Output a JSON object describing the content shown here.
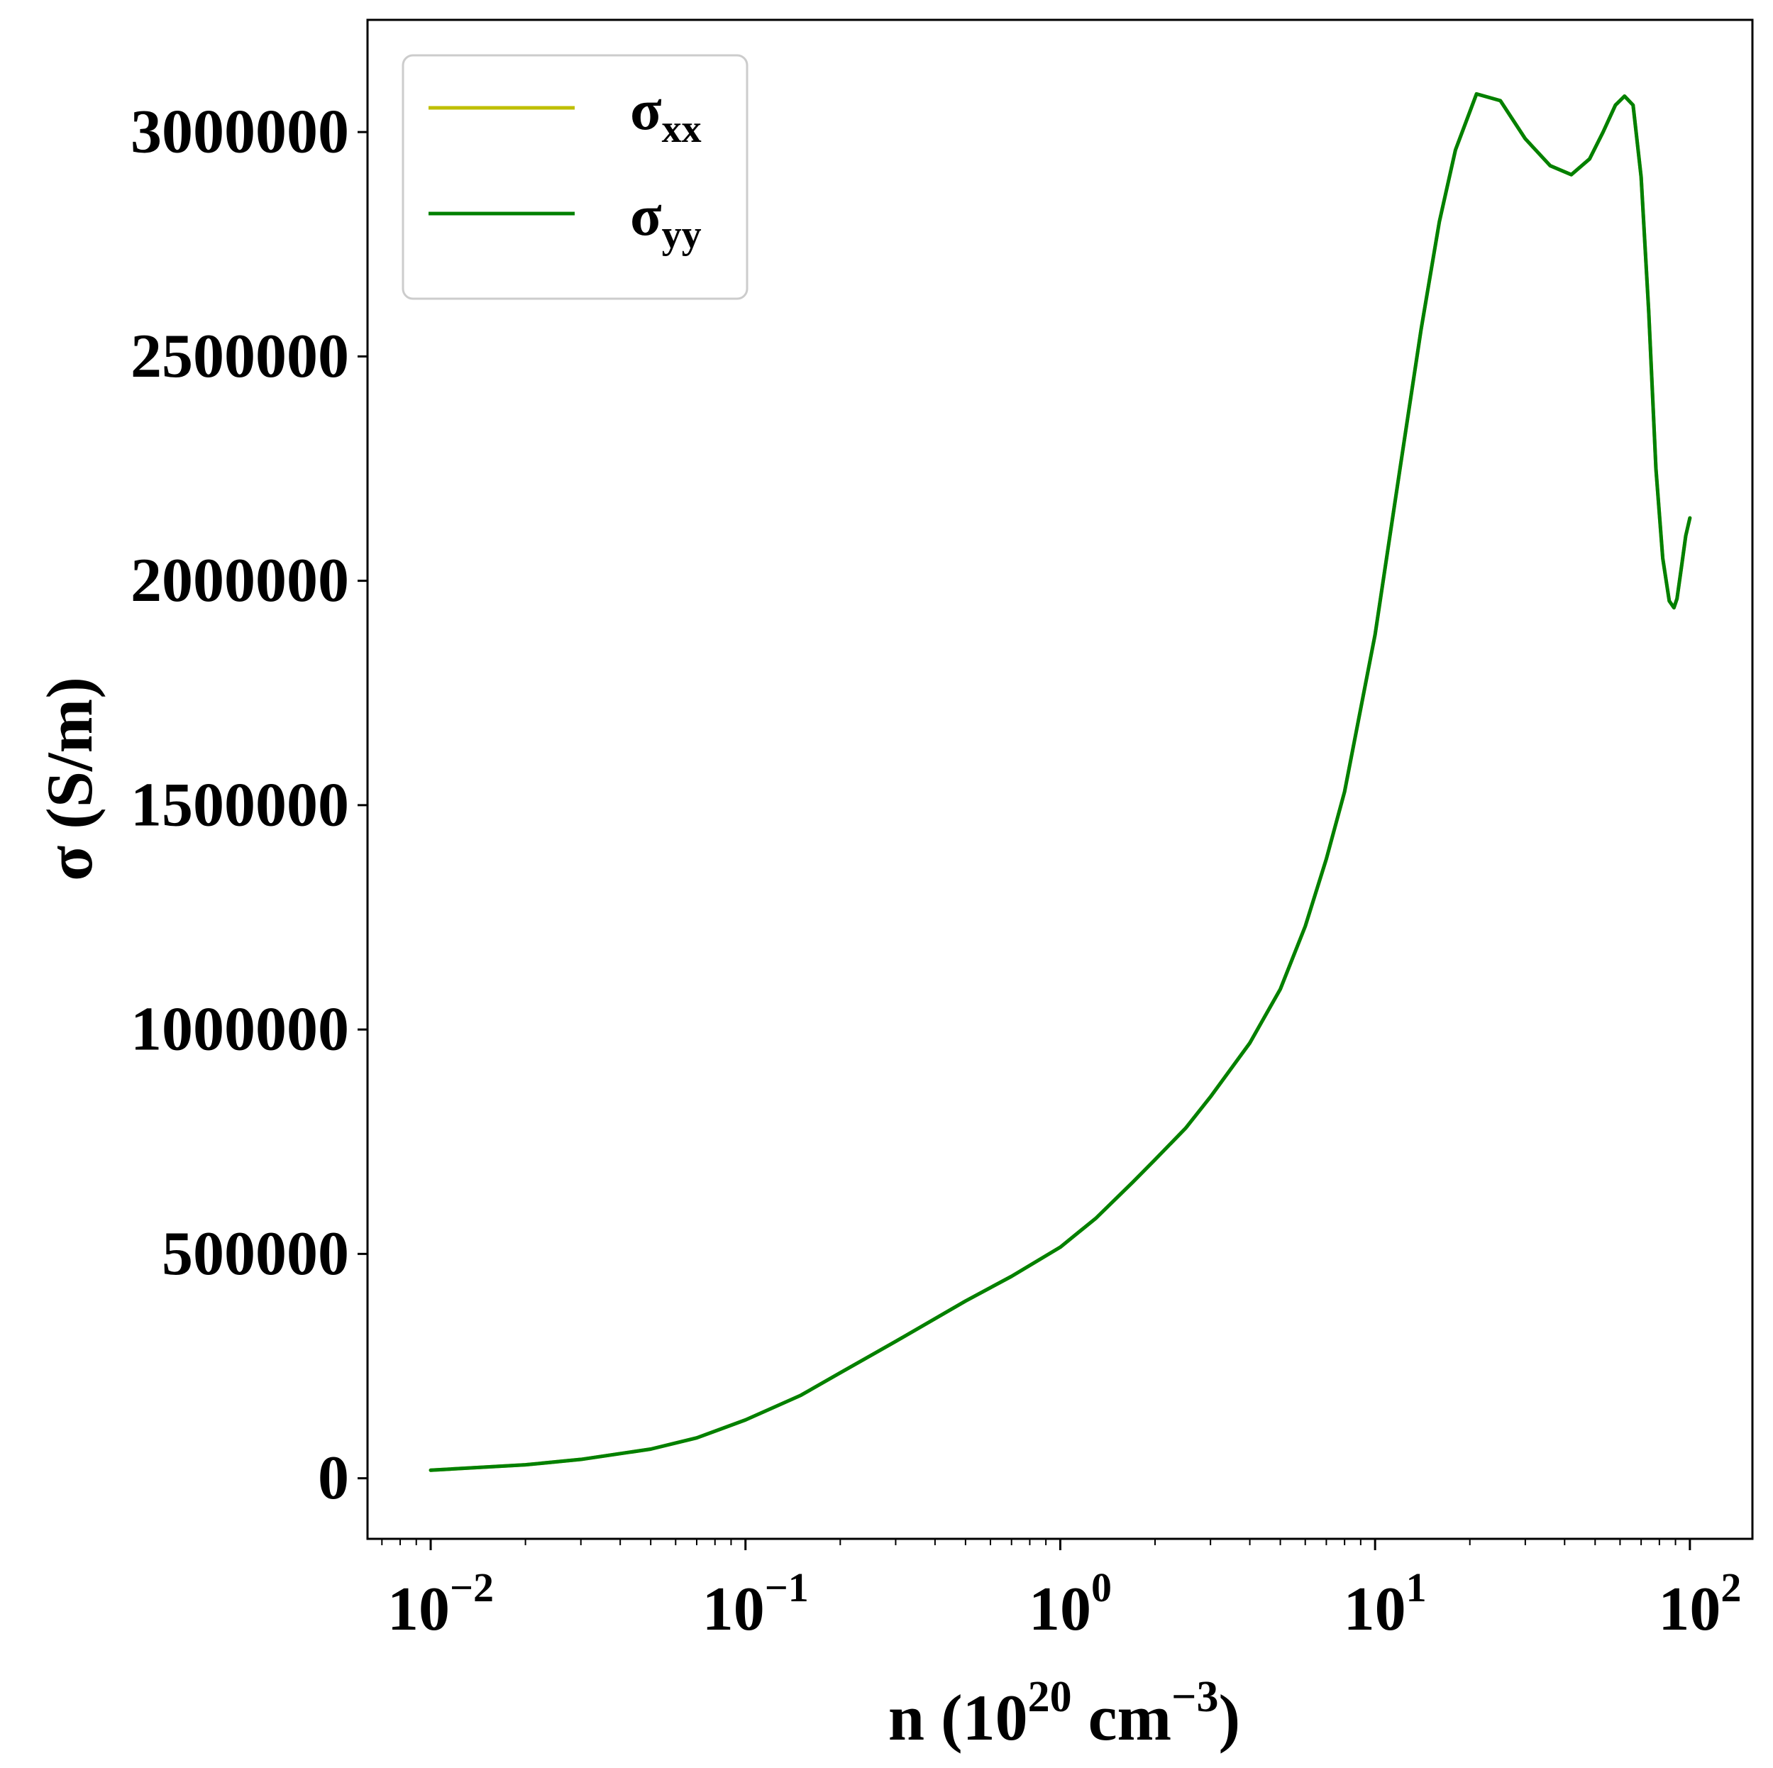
{
  "chart_data": {
    "type": "line",
    "xscale": "log",
    "xlim": [
      0.0063,
      158
    ],
    "ylim": [
      -135000,
      3250000
    ],
    "xlabel": {
      "base": "n (10",
      "sup1": "20",
      "mid": " cm",
      "sup2": "−3",
      "end": ")"
    },
    "ylabel": "σ (S/m)",
    "yticks": [
      0,
      500000,
      1000000,
      1500000,
      2000000,
      2500000,
      3000000
    ],
    "ytick_labels": [
      "0",
      "500000",
      "1000000",
      "1500000",
      "2000000",
      "2500000",
      "3000000"
    ],
    "xticks": [
      {
        "value": 0.01,
        "base": "10",
        "exp": "−2"
      },
      {
        "value": 0.1,
        "base": "10",
        "exp": "−1"
      },
      {
        "value": 1,
        "base": "10",
        "exp": "0"
      },
      {
        "value": 10,
        "base": "10",
        "exp": "1"
      },
      {
        "value": 100,
        "base": "10",
        "exp": "2"
      }
    ],
    "legend": {
      "position": "top-left",
      "entries": [
        {
          "symbol": "σ",
          "sub": "xx",
          "color": "#bfbf00"
        },
        {
          "symbol": "σ",
          "sub": "yy",
          "color": "#008000"
        }
      ]
    },
    "series": [
      {
        "color": "#bfbf00",
        "x": [
          0.01,
          0.02,
          0.03,
          0.05,
          0.07,
          0.1,
          0.15,
          0.2,
          0.3,
          0.5,
          0.7,
          1.0,
          1.3,
          1.7,
          2.0,
          2.5,
          3.0,
          4.0,
          5.0,
          6.0,
          7.0,
          8.0,
          10.0,
          12.0,
          14.0,
          16.0,
          18.0,
          21.0,
          25.0,
          30.0,
          36.0,
          42.0,
          48.0,
          53.0,
          58.0,
          62.0,
          66.0,
          70.0,
          74.0,
          78.0,
          82.0,
          86.0,
          89.0,
          91.0,
          94.0,
          97.0,
          100.0
        ],
        "y": [
          18000,
          30000,
          42000,
          65000,
          90000,
          130000,
          185000,
          235000,
          305000,
          395000,
          450000,
          515000,
          580000,
          660000,
          710000,
          780000,
          850000,
          970000,
          1090000,
          1230000,
          1380000,
          1530000,
          1880000,
          2250000,
          2560000,
          2800000,
          2960000,
          3085000,
          3070000,
          2985000,
          2925000,
          2905000,
          2940000,
          3000000,
          3060000,
          3080000,
          3060000,
          2900000,
          2600000,
          2250000,
          2050000,
          1955000,
          1940000,
          1960000,
          2030000,
          2100000,
          2140000
        ]
      },
      {
        "color": "#008000",
        "x": [
          0.01,
          0.02,
          0.03,
          0.05,
          0.07,
          0.1,
          0.15,
          0.2,
          0.3,
          0.5,
          0.7,
          1.0,
          1.3,
          1.7,
          2.0,
          2.5,
          3.0,
          4.0,
          5.0,
          6.0,
          7.0,
          8.0,
          10.0,
          12.0,
          14.0,
          16.0,
          18.0,
          21.0,
          25.0,
          30.0,
          36.0,
          42.0,
          48.0,
          53.0,
          58.0,
          62.0,
          66.0,
          70.0,
          74.0,
          78.0,
          82.0,
          86.0,
          89.0,
          91.0,
          94.0,
          97.0,
          100.0
        ],
        "y": [
          18000,
          30000,
          42000,
          65000,
          90000,
          130000,
          185000,
          235000,
          305000,
          395000,
          450000,
          515000,
          580000,
          660000,
          710000,
          780000,
          850000,
          970000,
          1090000,
          1230000,
          1380000,
          1530000,
          1880000,
          2250000,
          2560000,
          2800000,
          2960000,
          3085000,
          3070000,
          2985000,
          2925000,
          2905000,
          2940000,
          3000000,
          3060000,
          3080000,
          3060000,
          2900000,
          2600000,
          2250000,
          2050000,
          1955000,
          1940000,
          1960000,
          2030000,
          2100000,
          2140000
        ]
      }
    ]
  }
}
